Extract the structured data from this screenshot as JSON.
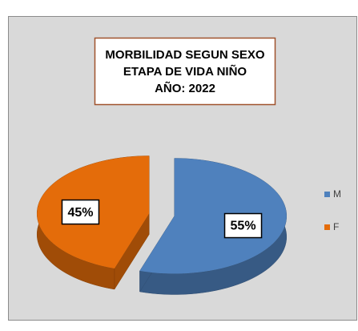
{
  "chart_data": {
    "type": "pie3d",
    "title": [
      "MORBILIDAD SEGUN SEXO",
      "ETAPA DE VIDA NIÑO",
      "AÑO: 2022"
    ],
    "categories": [
      "M",
      "F"
    ],
    "values": [
      55,
      45
    ],
    "value_labels": [
      "55%",
      "45%"
    ],
    "colors": [
      "#4f81bd",
      "#e46c0a"
    ],
    "legend": "right"
  }
}
